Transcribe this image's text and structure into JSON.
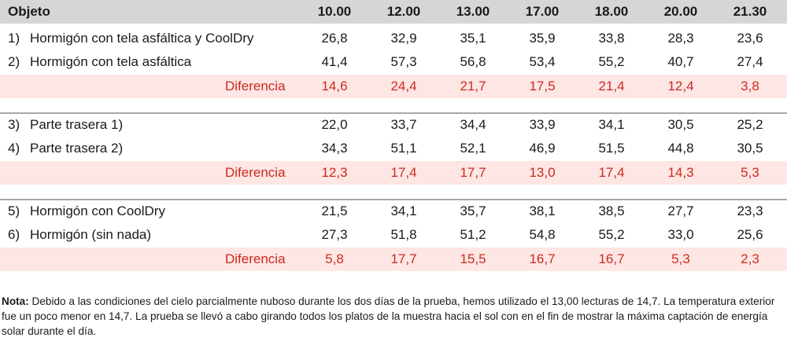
{
  "table": {
    "header": {
      "object_label": "Objeto",
      "times": [
        "10.00",
        "12.00",
        "13.00",
        "17.00",
        "18.00",
        "20.00",
        "21.30"
      ]
    },
    "groups": [
      {
        "rows": [
          {
            "num": "1)",
            "label": "Hormigón con tela asfáltica y CoolDry",
            "values": [
              "26,8",
              "32,9",
              "35,1",
              "35,9",
              "33,8",
              "28,3",
              "23,6"
            ]
          },
          {
            "num": "2)",
            "label": "Hormigón con tela asfáltica",
            "values": [
              "41,4",
              "57,3",
              "56,8",
              "53,4",
              "55,2",
              "40,7",
              "27,4"
            ]
          }
        ],
        "diff": {
          "label": "Diferencia",
          "values": [
            "14,6",
            "24,4",
            "21,7",
            "17,5",
            "21,4",
            "12,4",
            "3,8"
          ]
        }
      },
      {
        "rows": [
          {
            "num": "3)",
            "label": "Parte trasera 1)",
            "values": [
              "22,0",
              "33,7",
              "34,4",
              "33,9",
              "34,1",
              "30,5",
              "25,2"
            ]
          },
          {
            "num": "4)",
            "label": "Parte trasera 2)",
            "values": [
              "34,3",
              "51,1",
              "52,1",
              "46,9",
              "51,5",
              "44,8",
              "30,5"
            ]
          }
        ],
        "diff": {
          "label": "Diferencia",
          "values": [
            "12,3",
            "17,4",
            "17,7",
            "13,0",
            "17,4",
            "14,3",
            "5,3"
          ]
        }
      },
      {
        "rows": [
          {
            "num": "5)",
            "label": "Hormigón con CoolDry",
            "values": [
              "21,5",
              "34,1",
              "35,7",
              "38,1",
              "38,5",
              "27,7",
              "23,3"
            ]
          },
          {
            "num": "6)",
            "label": "Hormigón (sin nada)",
            "values": [
              "27,3",
              "51,8",
              "51,2",
              "54,8",
              "55,2",
              "33,0",
              "25,6"
            ]
          }
        ],
        "diff": {
          "label": "Diferencia",
          "values": [
            "5,8",
            "17,7",
            "15,5",
            "16,7",
            "16,7",
            "5,3",
            "2,3"
          ]
        }
      }
    ]
  },
  "note": {
    "key": "Nota:",
    "text": "Debido a las condiciones del cielo parcialmente nuboso durante los dos días de la prueba, hemos utilizado el 13,00 lecturas de 14,7. La temperatura exterior fue un poco menor en 14,7. La prueba se llevó a cabo girando todos los platos de la muestra hacia el sol con en el fin de mostrar la máxima captación de energía solar durante el día."
  },
  "colors": {
    "header_bg": "#d6d6d6",
    "diff_bg": "#fde6e3",
    "diff_text": "#cc2a22",
    "rule": "#a8a8a8"
  }
}
